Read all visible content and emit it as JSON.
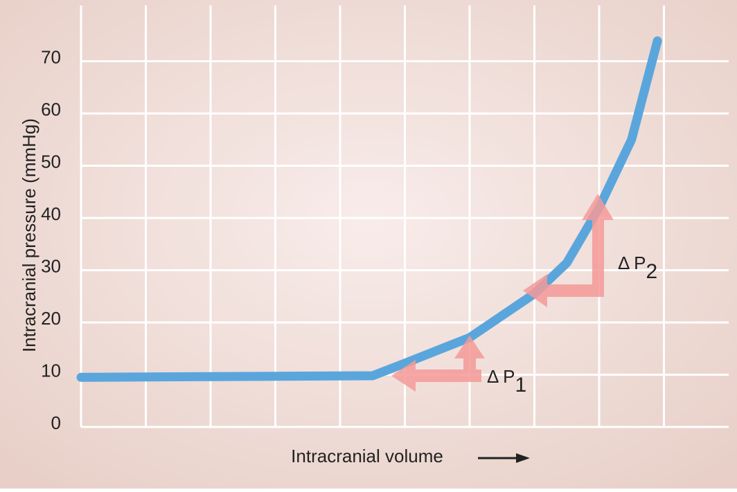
{
  "chart_data": {
    "type": "line",
    "y_label": "Intracranial pressure (mmHg)",
    "x_label": "Intracranial volume",
    "x": [
      0,
      4.5,
      5.0,
      6.0,
      7.0,
      7.5,
      8.0,
      8.5,
      8.9
    ],
    "series": [
      {
        "color": "#5aa6dc",
        "values": [
          9.5,
          9.8,
          12.2,
          17.1,
          25.5,
          31.4,
          42,
          55,
          73.9
        ]
      }
    ],
    "xlim": [
      0,
      10
    ],
    "xticks": [
      0,
      1,
      2,
      3,
      4,
      5,
      6,
      7,
      8,
      9
    ],
    "show_xtick_labels": false,
    "ylim": [
      0,
      80
    ],
    "yticks": [
      0,
      10,
      20,
      30,
      40,
      50,
      60,
      70
    ],
    "grid": true,
    "annotations": [
      {
        "text": "Δ P",
        "sub": "1"
      },
      {
        "text": "Δ P",
        "sub": "2"
      }
    ]
  }
}
